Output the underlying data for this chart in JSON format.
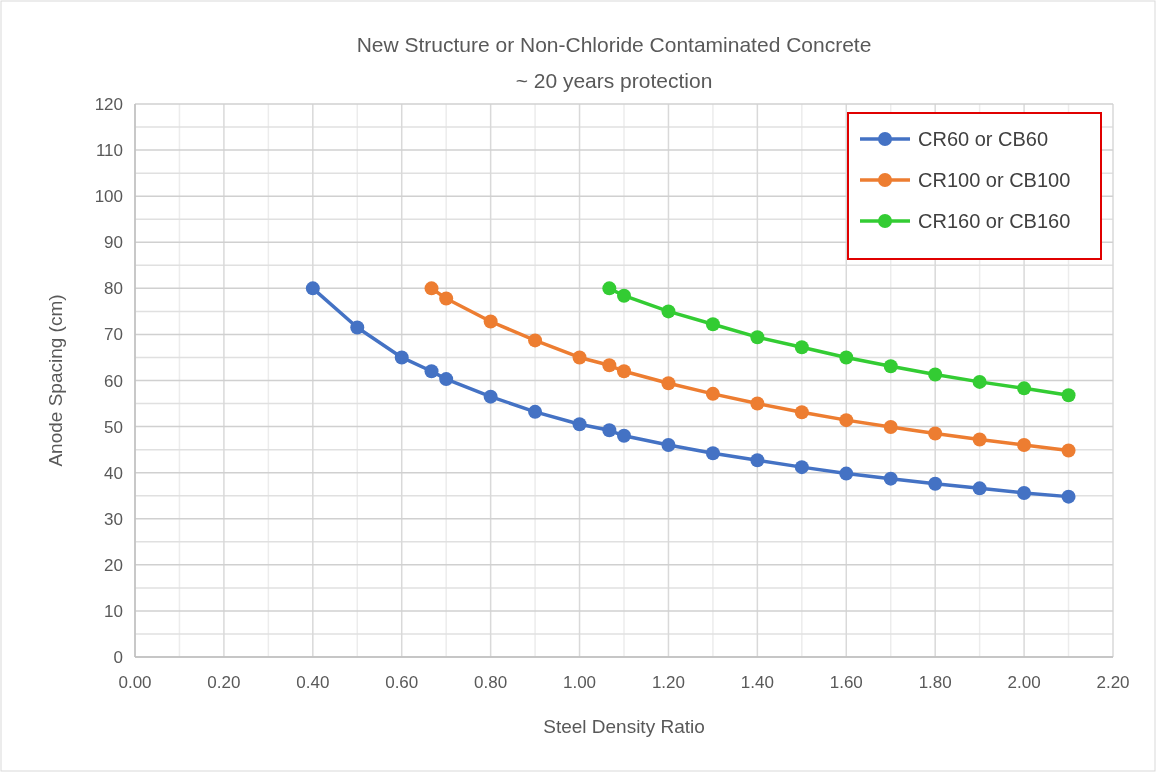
{
  "chart_data": {
    "type": "line",
    "title": "New Structure or Non-Chloride Contaminated Concrete",
    "subtitle": "~ 20 years protection",
    "xlabel": "Steel Density Ratio",
    "ylabel": "Anode Spacing (cm)",
    "xlim": [
      0,
      2.2
    ],
    "xticks": [
      {
        "value": 0,
        "label": "0.00"
      },
      {
        "value": 0.2,
        "label": "0.20"
      },
      {
        "value": 0.4,
        "label": "0.40"
      },
      {
        "value": 0.6,
        "label": "0.60"
      },
      {
        "value": 0.8,
        "label": "0.80"
      },
      {
        "value": 1,
        "label": "1.00"
      },
      {
        "value": 1.2,
        "label": "1.20"
      },
      {
        "value": 1.4,
        "label": "1.40"
      },
      {
        "value": 1.6,
        "label": "1.60"
      },
      {
        "value": 1.8,
        "label": "1.80"
      },
      {
        "value": 2,
        "label": "2.00"
      },
      {
        "value": 2.2,
        "label": "2.20"
      }
    ],
    "ylim": [
      0,
      120
    ],
    "yticks": [
      0,
      10,
      20,
      30,
      40,
      50,
      60,
      70,
      80,
      90,
      100,
      110,
      120
    ],
    "grid": true,
    "legend": "top right",
    "marker": "circle",
    "line_style": "solid",
    "series": [
      {
        "name": "CR60 or CB60",
        "color": "#4472c4",
        "x": [
          0.4,
          0.5,
          0.6,
          0.667,
          0.7,
          0.8,
          0.9,
          1.0,
          1.067,
          1.1,
          1.2,
          1.3,
          1.4,
          1.5,
          1.6,
          1.7,
          1.8,
          1.9,
          2.0,
          2.1
        ],
        "values": [
          80,
          71.5,
          65,
          62,
          60.3,
          56.5,
          53.2,
          50.5,
          49.2,
          48,
          46,
          44.2,
          42.7,
          41.2,
          39.8,
          38.7,
          37.6,
          36.6,
          35.6,
          34.8
        ]
      },
      {
        "name": "CR100 or CB100",
        "color": "#ed7d31",
        "x": [
          0.667,
          0.7,
          0.8,
          0.9,
          1.0,
          1.067,
          1.1,
          1.2,
          1.3,
          1.4,
          1.5,
          1.6,
          1.7,
          1.8,
          1.9,
          2.0,
          2.1
        ],
        "values": [
          80,
          77.8,
          72.8,
          68.7,
          65,
          63.3,
          62,
          59.4,
          57.1,
          55,
          53.1,
          51.4,
          49.9,
          48.5,
          47.2,
          46,
          44.8
        ]
      },
      {
        "name": "CR160 or CB160",
        "color": "#33cc33",
        "x": [
          1.067,
          1.1,
          1.2,
          1.3,
          1.4,
          1.5,
          1.6,
          1.7,
          1.8,
          1.9,
          2.0,
          2.1
        ],
        "values": [
          80,
          78.4,
          75,
          72.2,
          69.4,
          67.2,
          65,
          63.1,
          61.3,
          59.7,
          58.3,
          56.8
        ]
      }
    ]
  }
}
